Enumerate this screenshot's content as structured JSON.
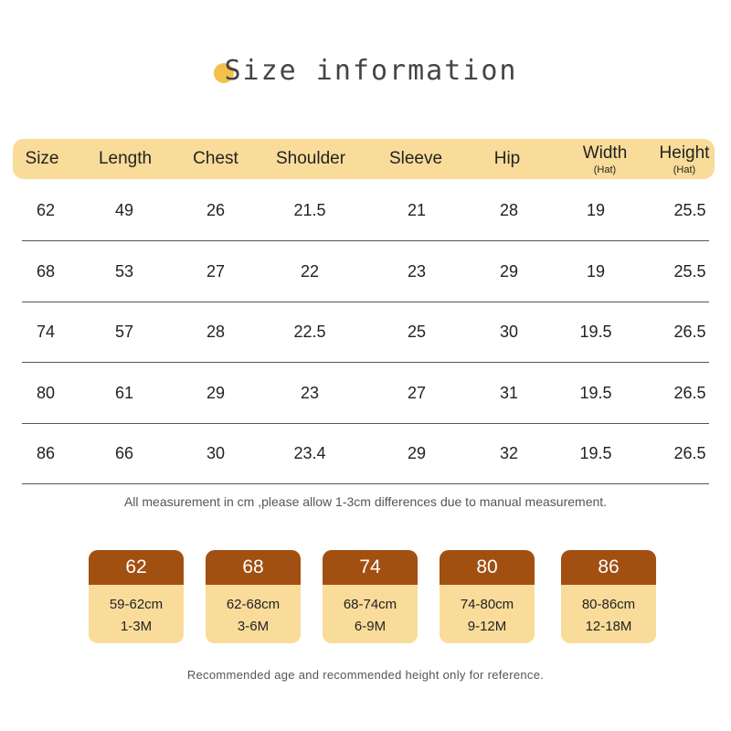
{
  "title": "Size information",
  "table": {
    "headers": [
      {
        "main": "Size",
        "sub": ""
      },
      {
        "main": "Length",
        "sub": ""
      },
      {
        "main": "Chest",
        "sub": ""
      },
      {
        "main": "Shoulder",
        "sub": ""
      },
      {
        "main": "Sleeve",
        "sub": ""
      },
      {
        "main": "Hip",
        "sub": ""
      },
      {
        "main": "Width",
        "sub": "(Hat)"
      },
      {
        "main": "Height",
        "sub": "(Hat)"
      }
    ],
    "rows": [
      [
        "62",
        "49",
        "26",
        "21.5",
        "21",
        "28",
        "19",
        "25.5"
      ],
      [
        "68",
        "53",
        "27",
        "22",
        "23",
        "29",
        "19",
        "25.5"
      ],
      [
        "74",
        "57",
        "28",
        "22.5",
        "25",
        "30",
        "19.5",
        "26.5"
      ],
      [
        "80",
        "61",
        "29",
        "23",
        "27",
        "31",
        "19.5",
        "26.5"
      ],
      [
        "86",
        "66",
        "30",
        "23.4",
        "29",
        "32",
        "19.5",
        "26.5"
      ]
    ]
  },
  "note": "All measurement in cm ,please allow 1-3cm differences due to manual measurement.",
  "cards": [
    {
      "size": "62",
      "height": "59-62cm",
      "age": "1-3M"
    },
    {
      "size": "68",
      "height": "62-68cm",
      "age": "3-6M"
    },
    {
      "size": "74",
      "height": "68-74cm",
      "age": "6-9M"
    },
    {
      "size": "80",
      "height": "74-80cm",
      "age": "9-12M"
    },
    {
      "size": "86",
      "height": "80-86cm",
      "age": "12-18M"
    }
  ],
  "footer": "Recommended age and recommended height only for reference.",
  "colors": {
    "header_bg": "#f9dc9a",
    "card_top": "#a24f12",
    "title_dot": "#f3c14b"
  }
}
